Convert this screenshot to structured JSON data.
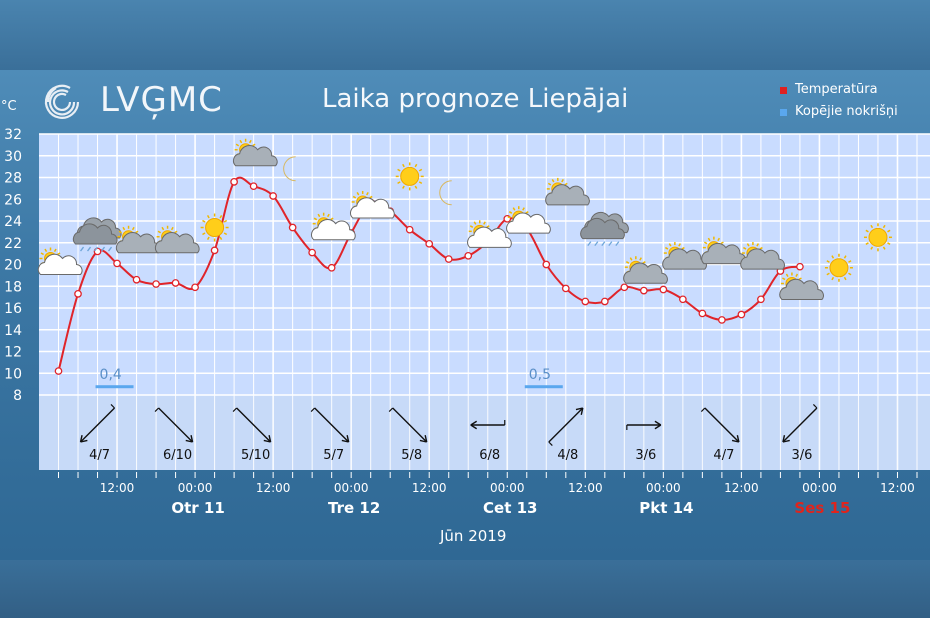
{
  "header": {
    "logo_text": "LVĢMC",
    "title": "Laika prognoze Liepājai",
    "unit": "°C",
    "month": "Jūn 2019"
  },
  "legend": [
    {
      "label": "Temperatūra",
      "color": "#e02020"
    },
    {
      "label": "Kopējie nokrišņi",
      "color": "#5aa7ee"
    }
  ],
  "chart_data": {
    "type": "line",
    "title": "Laika prognoze Liepājai",
    "ylabel": "°C",
    "ylim": [
      8,
      32
    ],
    "yticks": [
      8,
      10,
      12,
      14,
      16,
      18,
      20,
      22,
      24,
      26,
      28,
      30,
      32
    ],
    "x_hours": [
      3,
      6,
      9,
      12,
      15,
      18,
      21,
      24,
      27,
      30,
      33,
      36,
      39,
      42,
      45,
      48,
      51,
      54,
      57,
      60,
      63,
      66,
      69,
      72,
      75,
      78,
      81,
      84,
      87,
      90,
      93,
      96,
      99,
      102,
      105,
      108,
      111,
      114,
      117
    ],
    "series": [
      {
        "name": "Temperatūra",
        "values": [
          10.2,
          17.3,
          21.2,
          20.1,
          18.6,
          18.2,
          18.3,
          17.9,
          21.3,
          27.6,
          27.2,
          26.3,
          23.4,
          21.1,
          19.7,
          22.9,
          25.7,
          24.9,
          23.2,
          21.9,
          20.5,
          20.8,
          22.1,
          24.2,
          23.3,
          20.0,
          17.8,
          16.6,
          16.6,
          17.9,
          17.6,
          17.7,
          16.8,
          15.5,
          14.9,
          15.4,
          16.8,
          19.4,
          19.8
        ]
      }
    ],
    "markers_hours": [
      3,
      6,
      9,
      12,
      15,
      18,
      21,
      24,
      27,
      30,
      33,
      36,
      39,
      42,
      45,
      48,
      51,
      54,
      57,
      60,
      63,
      66,
      69,
      72,
      75,
      78,
      81,
      84,
      87,
      90,
      93,
      96,
      99,
      102,
      105,
      108,
      111,
      114,
      117
    ],
    "precipitation": [
      {
        "hour": 9,
        "value": "0,4"
      },
      {
        "hour": 75,
        "value": "0,5"
      }
    ],
    "wind": [
      {
        "hour": 9,
        "label": "4/7",
        "dir": "sw"
      },
      {
        "hour": 21,
        "label": "6/10",
        "dir": "se"
      },
      {
        "hour": 33,
        "label": "5/10",
        "dir": "se"
      },
      {
        "hour": 45,
        "label": "5/7",
        "dir": "se"
      },
      {
        "hour": 57,
        "label": "5/8",
        "dir": "se"
      },
      {
        "hour": 69,
        "label": "6/8",
        "dir": "w"
      },
      {
        "hour": 81,
        "label": "4/8",
        "dir": "ne"
      },
      {
        "hour": 93,
        "label": "3/6",
        "dir": "e"
      },
      {
        "hour": 105,
        "label": "4/7",
        "dir": "se"
      },
      {
        "hour": 117,
        "label": "3/6",
        "dir": "sw"
      }
    ],
    "weather_icons": [
      {
        "hour": 3,
        "temp": 20.0,
        "type": "partly-cloudy"
      },
      {
        "hour": 9,
        "temp": 22.8,
        "type": "rain-cloud"
      },
      {
        "hour": 15,
        "temp": 22.0,
        "type": "cloudy-sun"
      },
      {
        "hour": 21,
        "temp": 22.0,
        "type": "cloudy-sun"
      },
      {
        "hour": 27,
        "temp": 23.4,
        "type": "sun"
      },
      {
        "hour": 33,
        "temp": 30.0,
        "type": "cloudy-sun"
      },
      {
        "hour": 39,
        "temp": 28.8,
        "type": "moon"
      },
      {
        "hour": 45,
        "temp": 23.2,
        "type": "partly-cloudy"
      },
      {
        "hour": 51,
        "temp": 25.2,
        "type": "partly-cloudy"
      },
      {
        "hour": 57,
        "temp": 28.1,
        "type": "sun"
      },
      {
        "hour": 63,
        "temp": 26.6,
        "type": "moon"
      },
      {
        "hour": 69,
        "temp": 22.5,
        "type": "partly-cloudy"
      },
      {
        "hour": 75,
        "temp": 23.8,
        "type": "partly-cloudy"
      },
      {
        "hour": 81,
        "temp": 26.4,
        "type": "cloudy-sun"
      },
      {
        "hour": 87,
        "temp": 23.3,
        "type": "rain-cloud"
      },
      {
        "hour": 93,
        "temp": 19.2,
        "type": "cloudy-sun"
      },
      {
        "hour": 99,
        "temp": 20.5,
        "type": "cloudy-sun"
      },
      {
        "hour": 105,
        "temp": 21.0,
        "type": "cloudy-sun"
      },
      {
        "hour": 111,
        "temp": 20.5,
        "type": "cloudy-sun"
      },
      {
        "hour": 117,
        "temp": 17.7,
        "type": "cloudy-sun"
      },
      {
        "hour": 123,
        "temp": 19.7,
        "type": "sun"
      },
      {
        "hour": 129,
        "temp": 22.5,
        "type": "sun"
      }
    ],
    "time_ticks": [
      {
        "hour": 12,
        "label": "12:00"
      },
      {
        "hour": 24,
        "label": "00:00"
      },
      {
        "hour": 36,
        "label": "12:00"
      },
      {
        "hour": 48,
        "label": "00:00"
      },
      {
        "hour": 60,
        "label": "12:00"
      },
      {
        "hour": 72,
        "label": "00:00"
      },
      {
        "hour": 84,
        "label": "12:00"
      },
      {
        "hour": 96,
        "label": "00:00"
      },
      {
        "hour": 108,
        "label": "12:00"
      },
      {
        "hour": 120,
        "label": "00:00"
      },
      {
        "hour": 132,
        "label": "12:00"
      }
    ],
    "days": [
      {
        "hour": 24,
        "label": "Otr 11",
        "color": "#ffffff"
      },
      {
        "hour": 48,
        "label": "Tre 12",
        "color": "#ffffff"
      },
      {
        "hour": 72,
        "label": "Cet 13",
        "color": "#ffffff"
      },
      {
        "hour": 96,
        "label": "Pkt 14",
        "color": "#ffffff"
      },
      {
        "hour": 120,
        "label": "Ses 15",
        "color": "#e0241c"
      }
    ]
  }
}
